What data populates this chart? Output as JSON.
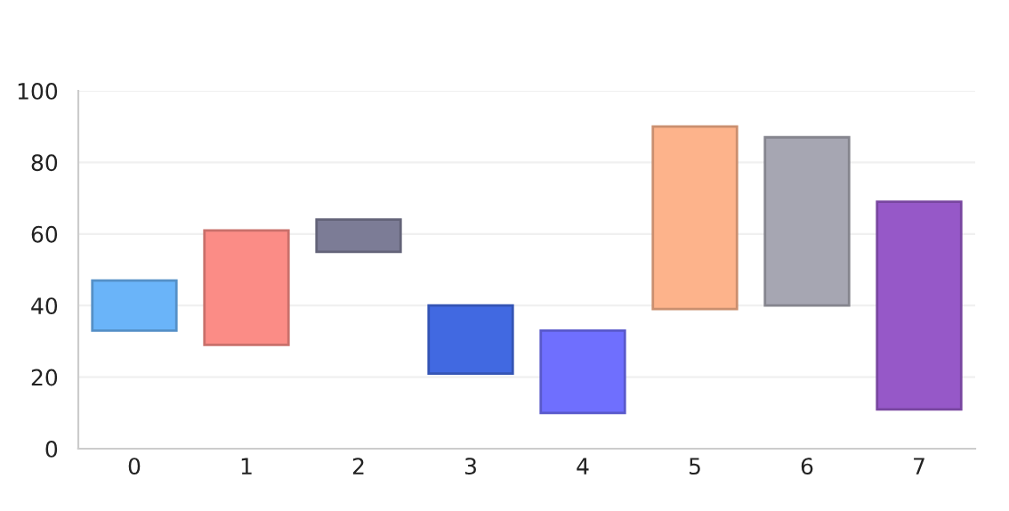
{
  "chart_data": {
    "type": "bar",
    "categories": [
      "0",
      "1",
      "2",
      "3",
      "4",
      "5",
      "6",
      "7"
    ],
    "base": [
      33,
      29,
      55,
      21,
      10,
      39,
      40,
      11
    ],
    "values": [
      14,
      32,
      9,
      19,
      23,
      51,
      47,
      58
    ],
    "colors": [
      "#6ab4f9",
      "#fb8c86",
      "#7c7c96",
      "#4169e1",
      "#6f6ffe",
      "#fdb38b",
      "#a6a6b2",
      "#9658c8"
    ],
    "ylim": [
      0,
      100
    ],
    "yticks": [
      0,
      20,
      40,
      60,
      80,
      100
    ],
    "grid": "y"
  }
}
